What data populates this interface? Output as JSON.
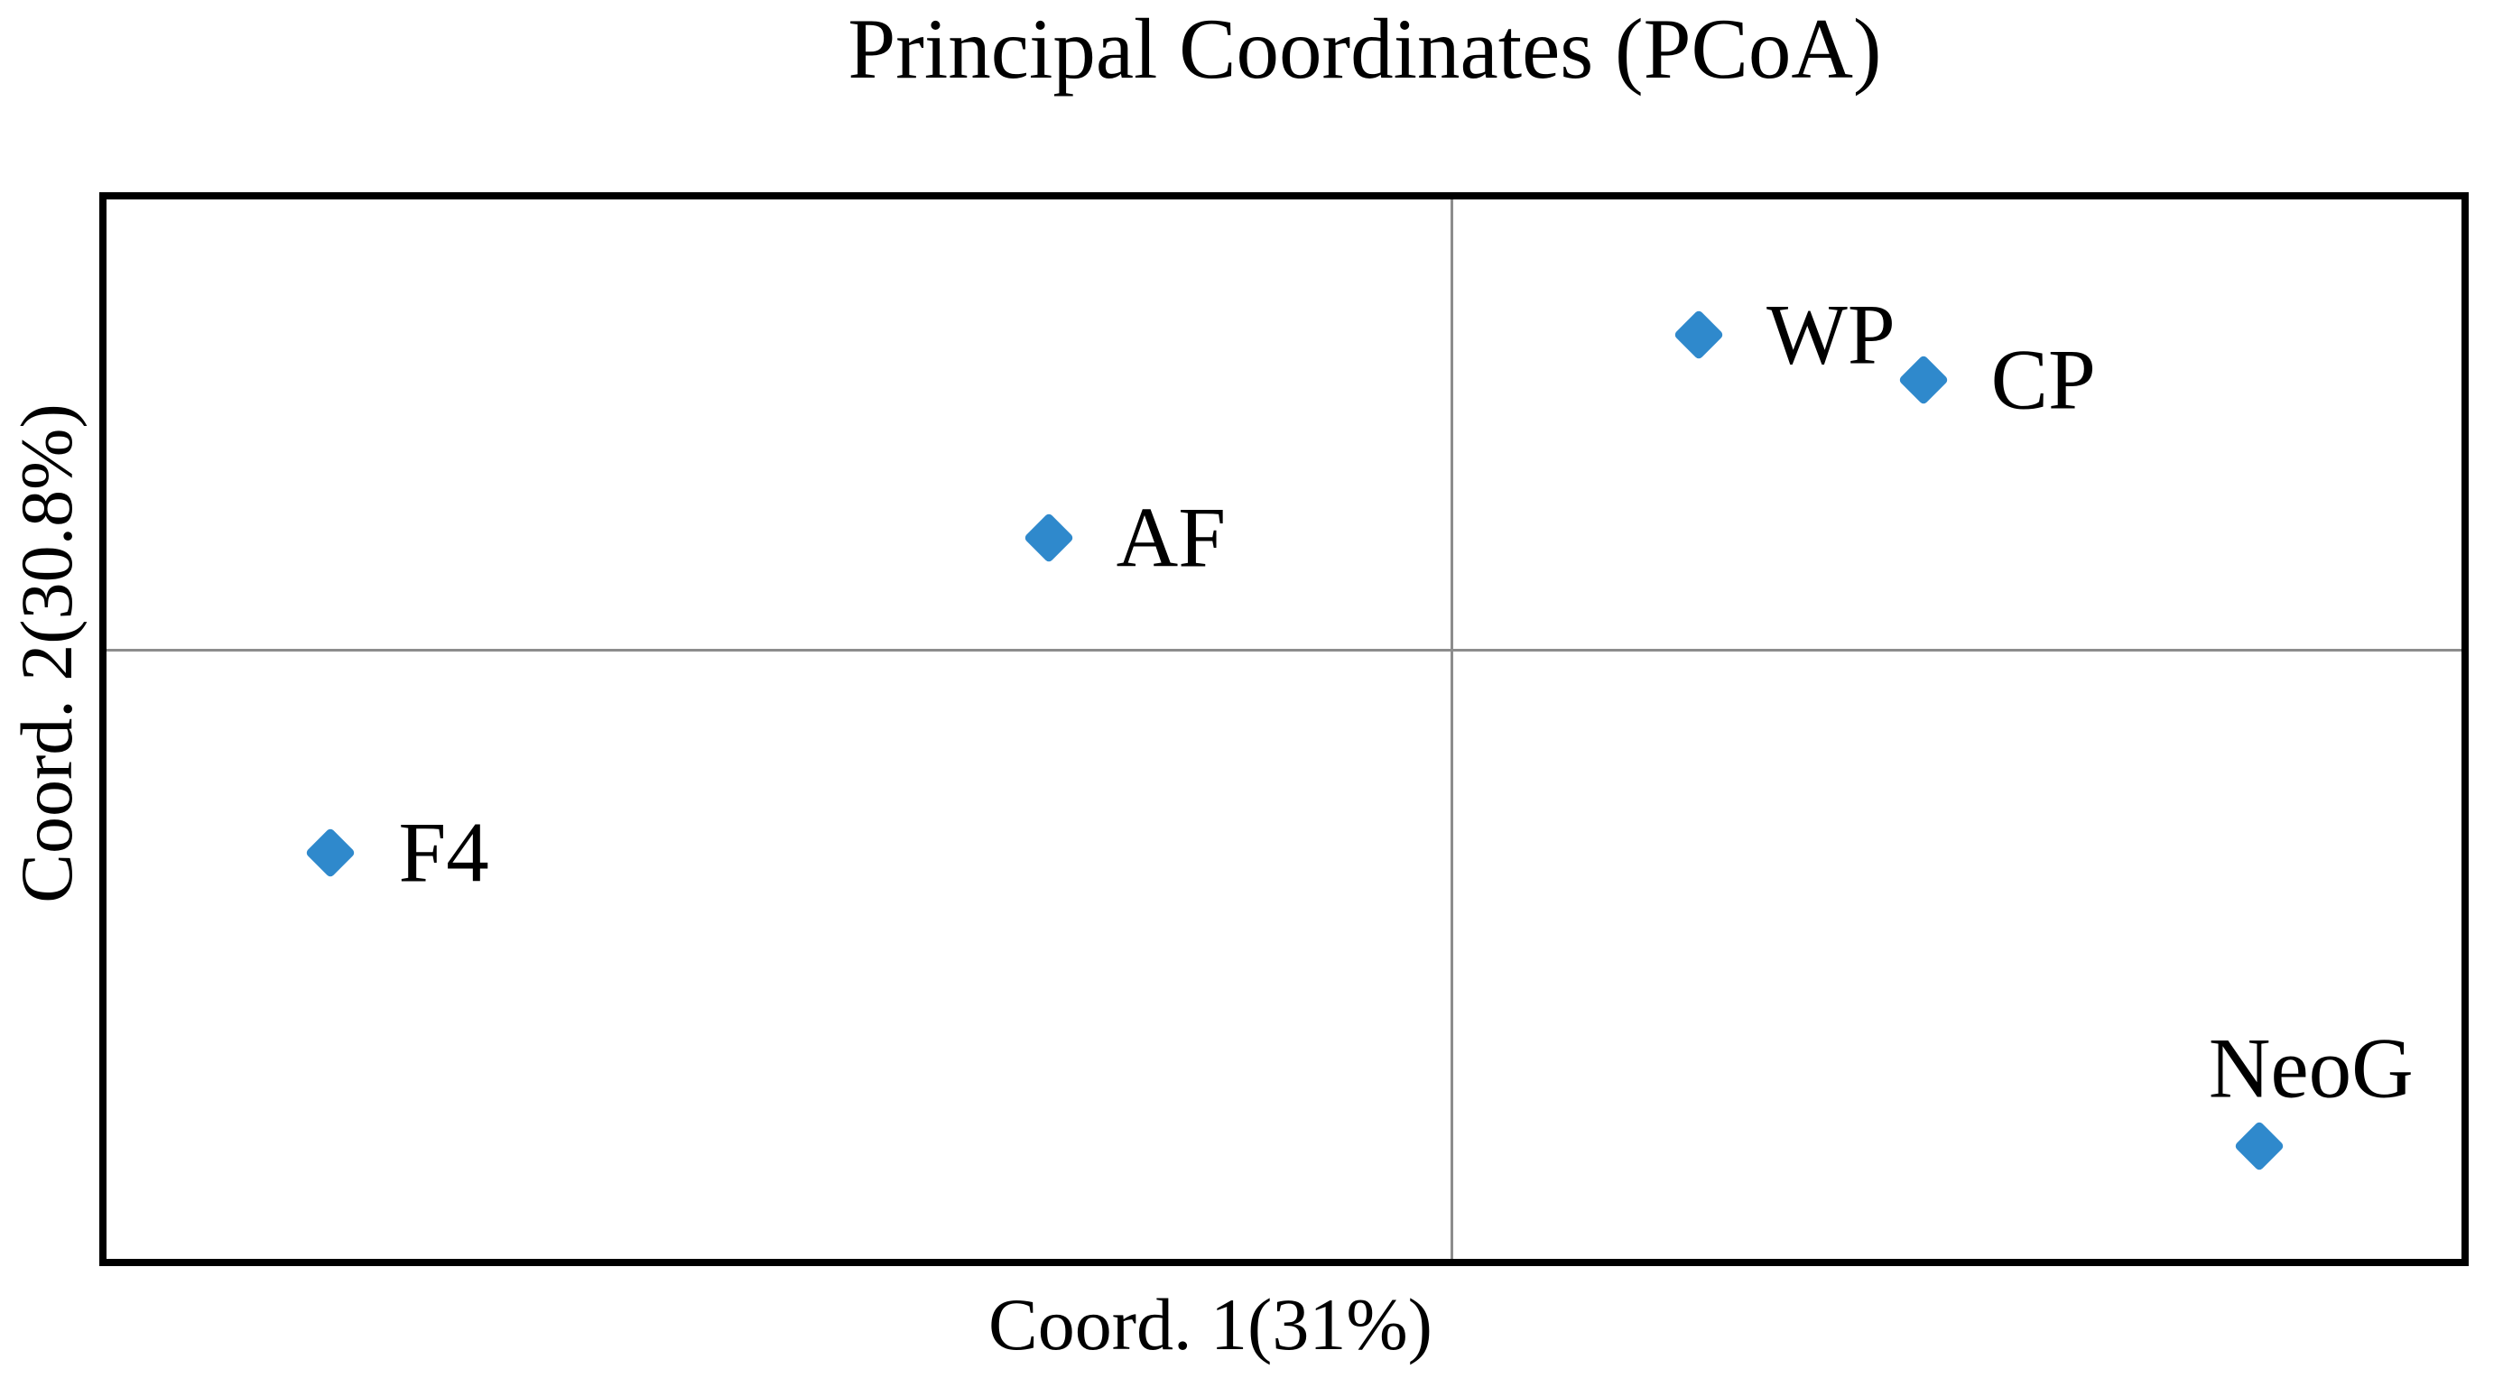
{
  "title": "Principal Coordinates (PCoA)",
  "axes": {
    "x_label": "Coord. 1(31%)",
    "y_label": "Coord. 2(30.8%)"
  },
  "colors": {
    "marker": "#2F89CC",
    "plot_border": "#000000",
    "zero_lines": "#8C8C8C",
    "text": "#000000",
    "background": "#FFFFFF"
  },
  "chart_data": {
    "type": "scatter",
    "title": "Principal Coordinates (PCoA)",
    "xlabel": "Coord. 1(31%)",
    "ylabel": "Coord. 2(30.8%)",
    "xlim": [
      -0.6,
      0.45
    ],
    "ylim": [
      -0.27,
      0.2
    ],
    "grid": false,
    "legend": false,
    "zero_axis_lines": true,
    "marker": "diamond",
    "marker_color": "#2F89CC",
    "points": [
      {
        "label": "WP",
        "x": 0.11,
        "y": 0.14,
        "label_position": "right"
      },
      {
        "label": "CP",
        "x": 0.21,
        "y": 0.12,
        "label_position": "right"
      },
      {
        "label": "AF",
        "x": -0.18,
        "y": 0.05,
        "label_position": "right"
      },
      {
        "label": "F4",
        "x": -0.5,
        "y": -0.09,
        "label_position": "right"
      },
      {
        "label": "NeoG",
        "x": 0.36,
        "y": -0.22,
        "label_position": "above"
      }
    ]
  }
}
